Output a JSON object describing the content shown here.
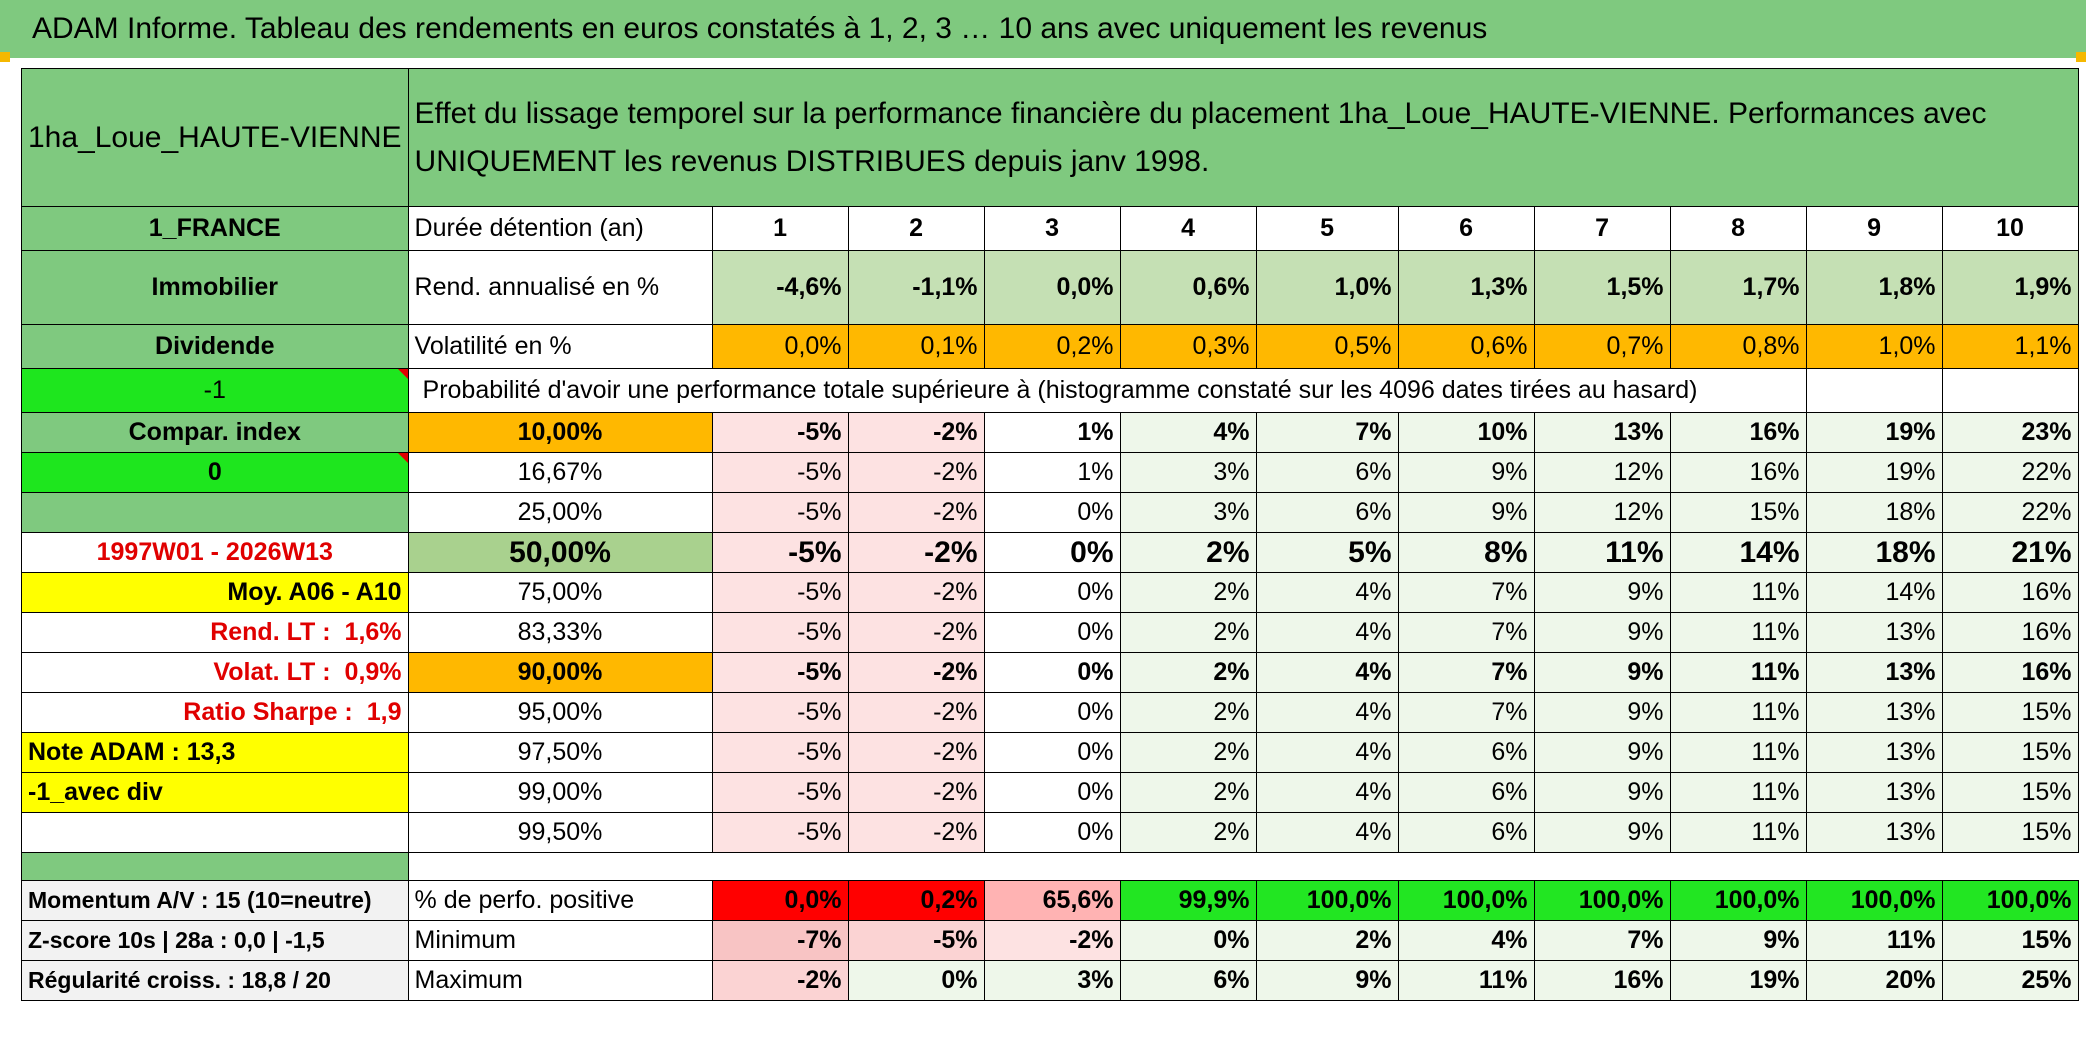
{
  "title": "ADAM Informe. Tableau des rendements en euros constatés à 1, 2, 3 … 10 ans avec uniquement les revenus",
  "header": {
    "fund_name": "1ha_Loue_HAUTE-VIENNE",
    "description_line1": "Effet du lissage temporel sur la performance financière du placement 1ha_Loue_HAUTE-VIENNE. Performances avec",
    "description_line2": "UNIQUEMENT les revenus DISTRIBUES depuis janv 1998."
  },
  "left": {
    "country": "1_FRANCE",
    "asset_class": "Immobilier",
    "dividend": "Dividende",
    "flag_minus1": "-1",
    "compar_index": "Compar. index",
    "zero": "0",
    "period": "1997W01 - 2026W13",
    "moy": "Moy. A06 - A10",
    "rend_lt_label": "Rend. LT :",
    "rend_lt_value": "1,6%",
    "volat_lt_label": "Volat. LT :",
    "volat_lt_value": "0,9%",
    "sharpe_label": "Ratio Sharpe :",
    "sharpe_value": "1,9",
    "note_adam": "Note ADAM : 13,3",
    "avec_div": "-1_avec div",
    "momentum": "Momentum A/V : 15 (10=neutre)",
    "zscore": "Z-score 10s | 28a : 0,0 | -1,5",
    "regularite": "Régularité croiss. : 18,8 / 20"
  },
  "rows": {
    "duree_label": "Durée détention (an)",
    "years": [
      "1",
      "2",
      "3",
      "4",
      "5",
      "6",
      "7",
      "8",
      "9",
      "10"
    ],
    "rend_label": "Rend. annualisé en %",
    "rend": [
      "-4,6%",
      "-1,1%",
      "0,0%",
      "0,6%",
      "1,0%",
      "1,3%",
      "1,5%",
      "1,7%",
      "1,8%",
      "1,9%"
    ],
    "vol_label": "Volatilité en %",
    "vol": [
      "0,0%",
      "0,1%",
      "0,2%",
      "0,3%",
      "0,5%",
      "0,6%",
      "0,7%",
      "0,8%",
      "1,0%",
      "1,1%"
    ],
    "proba_label": "Probabilité d'avoir une performance totale supérieure à (histogramme constaté sur les 4096 dates tirées au hasard)"
  },
  "percentiles": [
    {
      "p": "10,00%",
      "v": [
        "-5%",
        "-2%",
        "1%",
        "4%",
        "7%",
        "10%",
        "13%",
        "16%",
        "19%",
        "23%"
      ]
    },
    {
      "p": "16,67%",
      "v": [
        "-5%",
        "-2%",
        "1%",
        "3%",
        "6%",
        "9%",
        "12%",
        "16%",
        "19%",
        "22%"
      ]
    },
    {
      "p": "25,00%",
      "v": [
        "-5%",
        "-2%",
        "0%",
        "3%",
        "6%",
        "9%",
        "12%",
        "15%",
        "18%",
        "22%"
      ]
    },
    {
      "p": "50,00%",
      "v": [
        "-5%",
        "-2%",
        "0%",
        "2%",
        "5%",
        "8%",
        "11%",
        "14%",
        "18%",
        "21%"
      ]
    },
    {
      "p": "75,00%",
      "v": [
        "-5%",
        "-2%",
        "0%",
        "2%",
        "4%",
        "7%",
        "9%",
        "11%",
        "14%",
        "16%"
      ]
    },
    {
      "p": "83,33%",
      "v": [
        "-5%",
        "-2%",
        "0%",
        "2%",
        "4%",
        "7%",
        "9%",
        "11%",
        "13%",
        "16%"
      ]
    },
    {
      "p": "90,00%",
      "v": [
        "-5%",
        "-2%",
        "0%",
        "2%",
        "4%",
        "7%",
        "9%",
        "11%",
        "13%",
        "16%"
      ]
    },
    {
      "p": "95,00%",
      "v": [
        "-5%",
        "-2%",
        "0%",
        "2%",
        "4%",
        "7%",
        "9%",
        "11%",
        "13%",
        "15%"
      ]
    },
    {
      "p": "97,50%",
      "v": [
        "-5%",
        "-2%",
        "0%",
        "2%",
        "4%",
        "6%",
        "9%",
        "11%",
        "13%",
        "15%"
      ]
    },
    {
      "p": "99,00%",
      "v": [
        "-5%",
        "-2%",
        "0%",
        "2%",
        "4%",
        "6%",
        "9%",
        "11%",
        "13%",
        "15%"
      ]
    },
    {
      "p": "99,50%",
      "v": [
        "-5%",
        "-2%",
        "0%",
        "2%",
        "4%",
        "6%",
        "9%",
        "11%",
        "13%",
        "15%"
      ]
    }
  ],
  "bottom": {
    "pos_label": "% de perfo. positive",
    "pos": [
      "0,0%",
      "0,2%",
      "65,6%",
      "99,9%",
      "100,0%",
      "100,0%",
      "100,0%",
      "100,0%",
      "100,0%",
      "100,0%"
    ],
    "min_label": "Minimum",
    "min": [
      "-7%",
      "-5%",
      "-2%",
      "0%",
      "2%",
      "4%",
      "7%",
      "9%",
      "11%",
      "15%"
    ],
    "max_label": "Maximum",
    "max": [
      "-2%",
      "0%",
      "3%",
      "6%",
      "9%",
      "11%",
      "16%",
      "19%",
      "20%",
      "25%"
    ]
  },
  "colors": {
    "header_green": "#7fc97f",
    "lime": "#1ee61e",
    "yellow": "#ffff00",
    "orange": "#ffb800",
    "red_text": "#e00000"
  }
}
